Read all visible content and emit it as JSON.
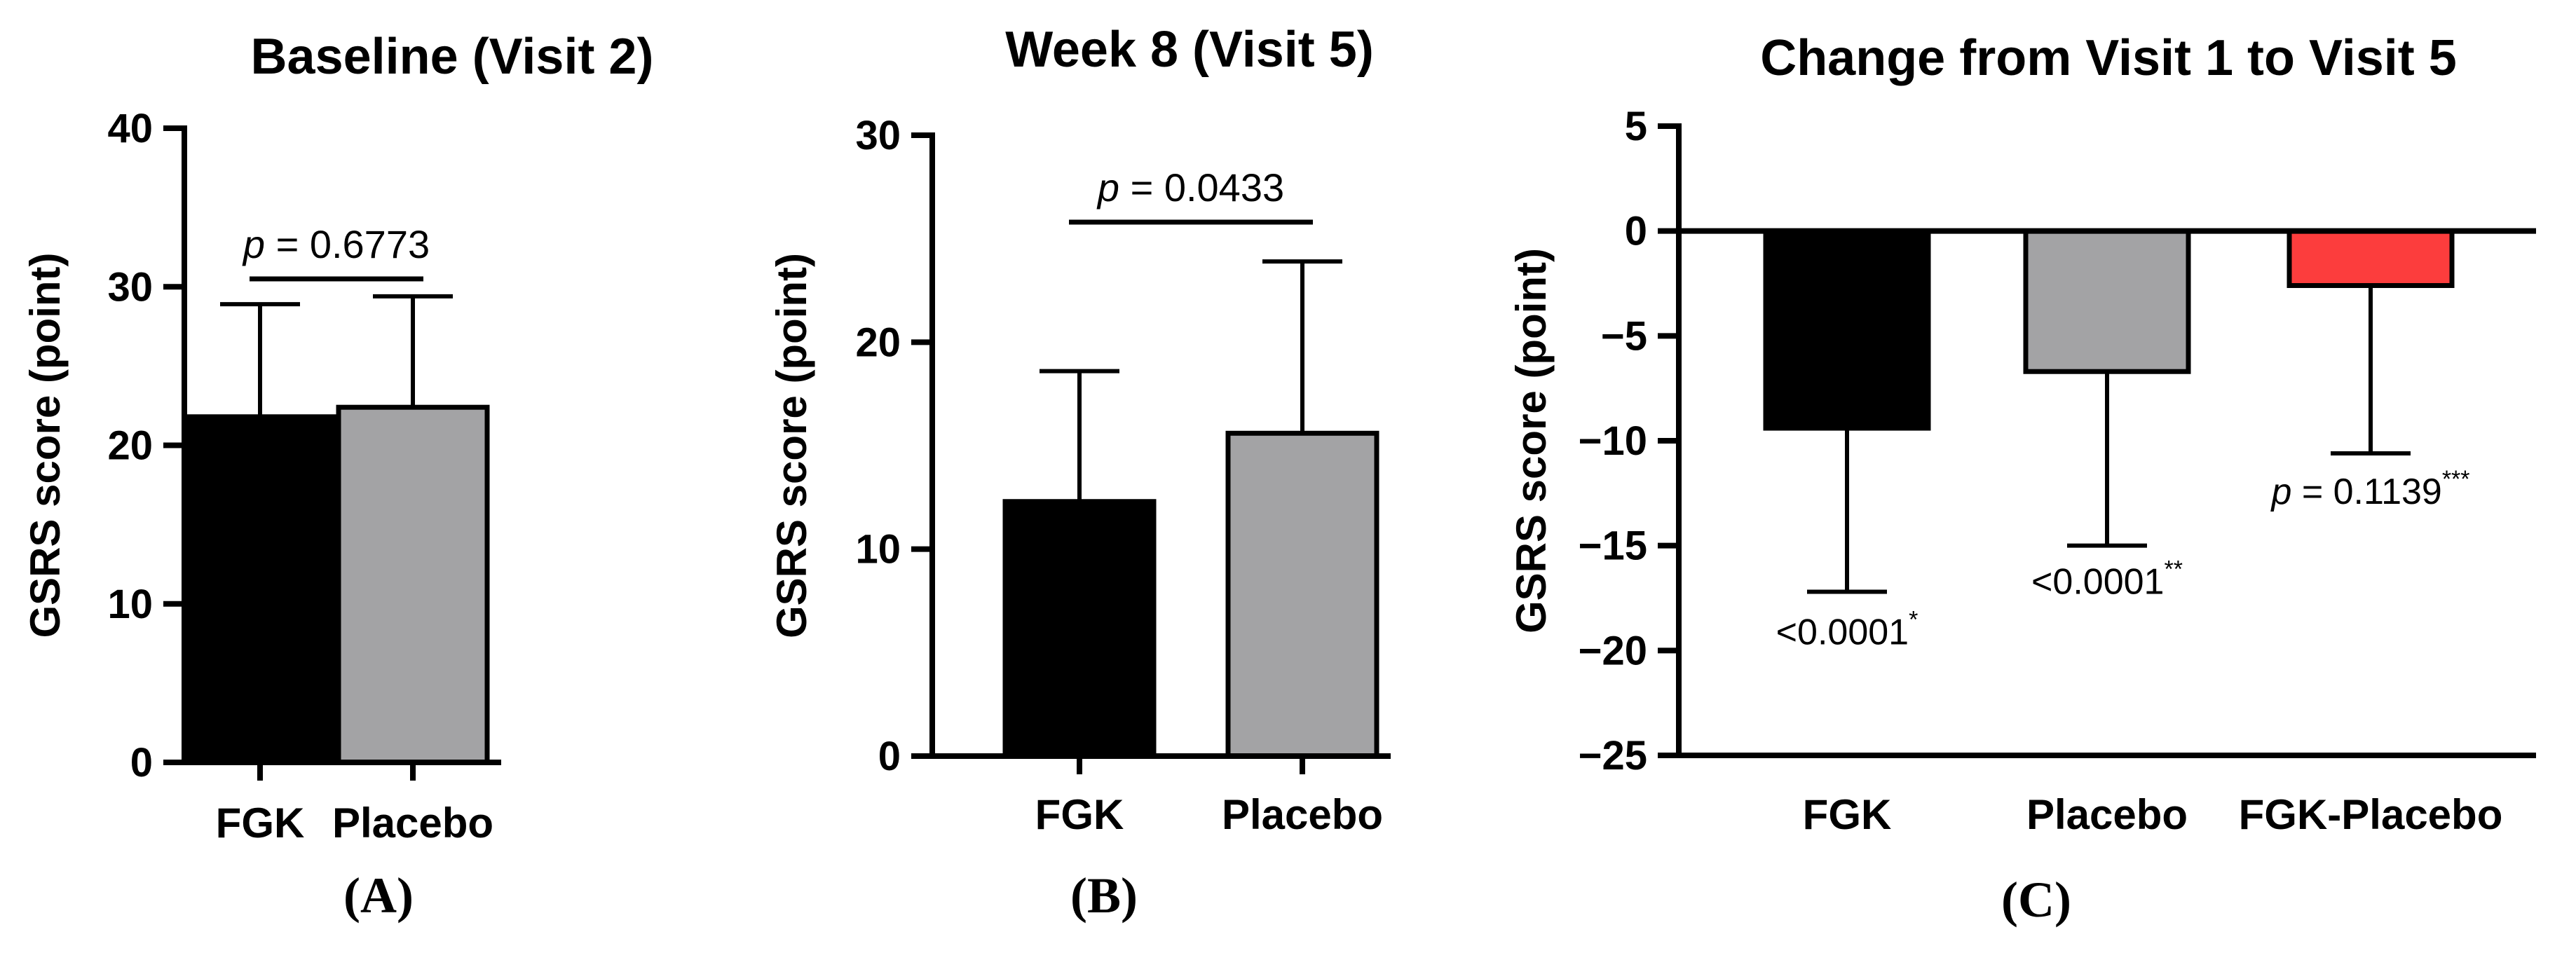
{
  "chart_data": [
    {
      "type": "bar",
      "title": "Baseline (Visit 2)",
      "panel_label": "(A)",
      "ylabel": "GSRS score (point)",
      "xlabel": "",
      "ylim": [
        0,
        40
      ],
      "yticks": [
        0,
        10,
        20,
        30,
        40
      ],
      "categories": [
        "FGK",
        "Placebo"
      ],
      "values": [
        21.8,
        22.4
      ],
      "error_upper": [
        28.9,
        29.4
      ],
      "colors": [
        "#000000",
        "#a3a3a5"
      ],
      "annotations": [
        {
          "kind": "bracket",
          "from": 0,
          "to": 1,
          "y": 30.5,
          "italic": "p",
          "text": " = 0.6773"
        }
      ]
    },
    {
      "type": "bar",
      "title": "Week 8 (Visit 5)",
      "panel_label": "(B)",
      "ylabel": "GSRS score (point)",
      "xlabel": "",
      "ylim": [
        0,
        30
      ],
      "yticks": [
        0,
        10,
        20,
        30
      ],
      "categories": [
        "FGK",
        "Placebo"
      ],
      "values": [
        12.3,
        15.6
      ],
      "error_upper": [
        18.6,
        23.9
      ],
      "colors": [
        "#000000",
        "#a3a3a5"
      ],
      "annotations": [
        {
          "kind": "bracket",
          "from": 0,
          "to": 1,
          "y": 25.8,
          "italic": "p",
          "text": " = 0.0433"
        }
      ]
    },
    {
      "type": "bar",
      "title": "Change from Visit 1 to Visit 5",
      "panel_label": "(C)",
      "ylabel": "GSRS score (point)",
      "xlabel": "",
      "ylim": [
        -25,
        5
      ],
      "yticks": [
        5,
        0,
        -5,
        -10,
        -15,
        -20,
        -25
      ],
      "ytick_labels": [
        "5",
        "0",
        "−5",
        "−10",
        "−15",
        "−20",
        "−25"
      ],
      "categories": [
        "FGK",
        "Placebo",
        "FGK-Placebo"
      ],
      "values": [
        -9.4,
        -6.7,
        -2.6
      ],
      "error_lower": [
        -17.2,
        -15.0,
        -10.6
      ],
      "colors": [
        "#000000",
        "#a3a3a5",
        "#fc3d3d"
      ],
      "annotations": [
        {
          "kind": "label",
          "bar": 0,
          "y": -19.7,
          "italic": "",
          "text": "<0.0001",
          "sup": "*"
        },
        {
          "kind": "label",
          "bar": 1,
          "y": -17.3,
          "italic": "",
          "text": "<0.0001",
          "sup": "**"
        },
        {
          "kind": "label",
          "bar": 2,
          "y": -13.0,
          "italic": "p",
          "text": " = 0.1139",
          "sup": "***"
        }
      ]
    }
  ]
}
